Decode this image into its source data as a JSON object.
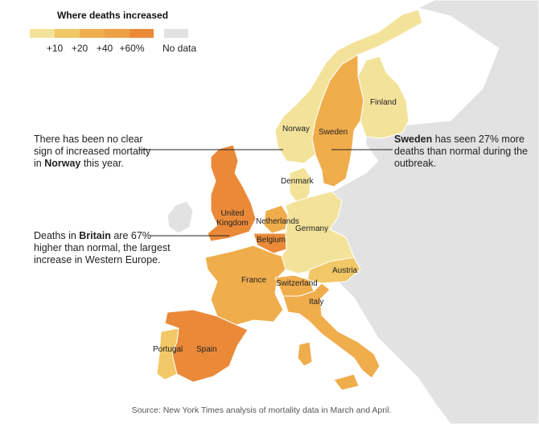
{
  "legend": {
    "title": "Where deaths increased",
    "ticks": [
      "+10",
      "+20",
      "+40",
      "+60%"
    ],
    "nodata_label": "No data",
    "colors": {
      "bin1": "#f3e39a",
      "bin2": "#f2c766",
      "bin3": "#f0ad4c",
      "bin4": "#ea8a39",
      "nodata": "#e2e2e2",
      "water": "#ffffff",
      "border": "#ffffff"
    }
  },
  "annotations": {
    "norway": {
      "line1": "There has been no clear",
      "line2": "sign of increased mortality",
      "line3_pre": "in ",
      "line3_bold": "Norway",
      "line3_post": " this year."
    },
    "sweden": {
      "bold": "Sweden",
      "line1_post": " has seen 27% more",
      "line2": "deaths than normal during the",
      "line3": "outbreak."
    },
    "britain": {
      "line1_pre": "Deaths in ",
      "line1_bold": "Britain",
      "line1_post": " are 67%",
      "line2": "higher than normal, the largest",
      "line3": "increase in Western Europe."
    }
  },
  "countries": [
    {
      "id": "finland",
      "name": "Finland",
      "bin": "bin1"
    },
    {
      "id": "norway",
      "name": "Norway",
      "bin": "bin1"
    },
    {
      "id": "sweden",
      "name": "Sweden",
      "bin": "bin3"
    },
    {
      "id": "denmark",
      "name": "Denmark",
      "bin": "bin1"
    },
    {
      "id": "uk",
      "name_line1": "United",
      "name_line2": "Kingdom",
      "bin": "bin4"
    },
    {
      "id": "netherlands",
      "name": "Netherlands",
      "bin": "bin3"
    },
    {
      "id": "belgium",
      "name": "Belgium",
      "bin": "bin4"
    },
    {
      "id": "germany",
      "name": "Germany",
      "bin": "bin1"
    },
    {
      "id": "austria",
      "name": "Austria",
      "bin": "bin2"
    },
    {
      "id": "france",
      "name": "France",
      "bin": "bin3"
    },
    {
      "id": "switzerland",
      "name": "Switzerland",
      "bin": "bin3"
    },
    {
      "id": "italy",
      "name": "Italy",
      "bin": "bin3"
    },
    {
      "id": "portugal",
      "name": "Portugal",
      "bin": "bin2"
    },
    {
      "id": "spain",
      "name": "Spain",
      "bin": "bin4"
    }
  ],
  "source": "Source: New York Times analysis of mortality data in March and April."
}
